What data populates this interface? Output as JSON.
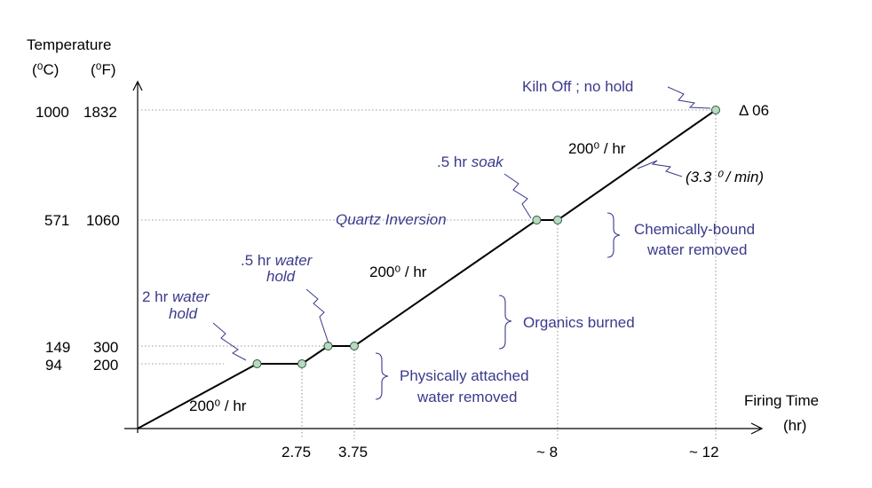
{
  "chart_data": {
    "type": "line",
    "y_title": "Temperature",
    "y_units": [
      "(⁰C)",
      "(⁰F)"
    ],
    "x_title": "Firing Time",
    "x_units": "(hr)",
    "x_ticks": [
      "2.75",
      "3.75",
      "~ 8",
      "~ 12"
    ],
    "y_ticks": [
      {
        "c": "94",
        "f": "200"
      },
      {
        "c": "149",
        "f": "300"
      },
      {
        "c": "571",
        "f": "1060"
      },
      {
        "c": "1000",
        "f": "1832"
      }
    ],
    "points_c": [
      [
        0,
        0
      ],
      [
        2.0,
        94
      ],
      [
        2.75,
        94
      ],
      [
        3.25,
        149
      ],
      [
        3.75,
        149
      ],
      [
        8.1,
        571
      ],
      [
        8.6,
        571
      ],
      [
        12.0,
        1000
      ]
    ],
    "hold_markers": [
      [
        2.0,
        94
      ],
      [
        2.75,
        94
      ],
      [
        3.25,
        149
      ],
      [
        3.75,
        149
      ],
      [
        8.1,
        571
      ],
      [
        8.6,
        571
      ],
      [
        12.0,
        1000
      ]
    ],
    "annotations": {
      "rate_low": "200⁰ / hr",
      "rate_mid": "200⁰ / hr",
      "rate_high": "200⁰ / hr",
      "rate_per_min": "(3.3 ⁰ / min)",
      "cone": "Δ 06",
      "kiln_off": "Kiln Off ; no hold",
      "hold1_prefix": "2 hr ",
      "hold1_word": "water",
      "hold1_line2": "hold",
      "hold2_prefix": ".5 hr ",
      "hold2_word": "water",
      "hold2_line2": "hold",
      "soak_prefix": ".5 hr ",
      "soak_word": "soak",
      "quartz": "Quartz Inversion",
      "physical_1": "Physically attached",
      "physical_2": "water removed",
      "organics": "Organics burned",
      "chemical_1": "Chemically-bound",
      "chemical_2": "water removed"
    }
  }
}
